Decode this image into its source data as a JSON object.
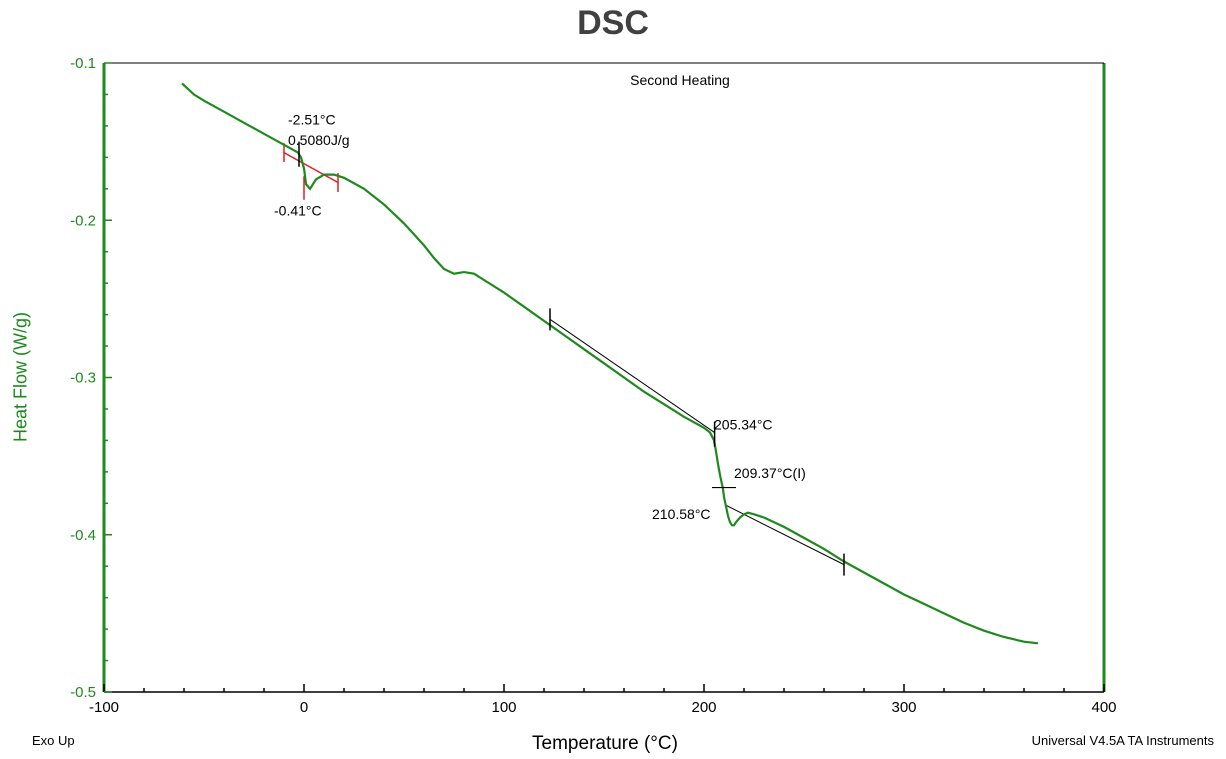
{
  "chart_data": {
    "type": "line",
    "title": "DSC",
    "subtitle": "Second Heating",
    "xlabel": "Temperature (°C)",
    "ylabel": "Heat Flow (W/g)",
    "xlim": [
      -100,
      400
    ],
    "ylim": [
      -0.5,
      -0.1
    ],
    "x_ticks": [
      "-100",
      "0",
      "100",
      "200",
      "300",
      "400"
    ],
    "y_ticks": [
      "-0.1",
      "-0.2",
      "-0.3",
      "-0.4",
      "-0.5"
    ],
    "grid": false,
    "series": [
      {
        "color": "#1e8a1e",
        "x": [
          -61,
          -55,
          -50,
          -40,
          -30,
          -20,
          -10,
          -3,
          -1.5,
          0,
          1,
          3,
          6,
          10,
          15,
          20,
          30,
          40,
          50,
          60,
          65,
          70,
          75,
          80,
          85,
          90,
          100,
          110,
          120,
          130,
          140,
          150,
          160,
          170,
          180,
          190,
          200,
          203,
          205,
          206,
          207,
          208,
          209,
          209.4,
          210,
          211,
          212,
          213,
          214,
          215,
          216,
          218,
          220,
          222,
          225,
          230,
          240,
          250,
          260,
          270,
          280,
          290,
          300,
          310,
          320,
          330,
          340,
          350,
          360,
          367
        ],
        "y": [
          -0.113,
          -0.12,
          -0.124,
          -0.131,
          -0.138,
          -0.145,
          -0.152,
          -0.157,
          -0.16,
          -0.167,
          -0.177,
          -0.18,
          -0.174,
          -0.171,
          -0.171,
          -0.173,
          -0.18,
          -0.19,
          -0.202,
          -0.216,
          -0.224,
          -0.231,
          -0.234,
          -0.233,
          -0.234,
          -0.238,
          -0.246,
          -0.255,
          -0.264,
          -0.273,
          -0.282,
          -0.291,
          -0.3,
          -0.309,
          -0.317,
          -0.325,
          -0.332,
          -0.335,
          -0.34,
          -0.347,
          -0.355,
          -0.362,
          -0.368,
          -0.37,
          -0.376,
          -0.382,
          -0.388,
          -0.392,
          -0.394,
          -0.394,
          -0.392,
          -0.389,
          -0.387,
          -0.386,
          -0.387,
          -0.389,
          -0.395,
          -0.402,
          -0.409,
          -0.417,
          -0.424,
          -0.431,
          -0.438,
          -0.444,
          -0.45,
          -0.456,
          -0.461,
          -0.465,
          -0.468,
          -0.469
        ]
      }
    ],
    "annotations": [
      {
        "text": "-2.51°C",
        "x": -8,
        "y": -0.139
      },
      {
        "text": "0.5080J/g",
        "x": -8,
        "y": -0.152
      },
      {
        "text": "-0.41°C",
        "x": -15,
        "y": -0.197
      },
      {
        "text": "205.34°C",
        "x": 205,
        "y": -0.333
      },
      {
        "text": "209.37°C(I)",
        "x": 215,
        "y": -0.364
      },
      {
        "text": "210.58°C",
        "x": 174,
        "y": -0.39
      }
    ],
    "footer_left": "Exo Up",
    "footer_right": "Universal V4.5A TA Instruments"
  }
}
